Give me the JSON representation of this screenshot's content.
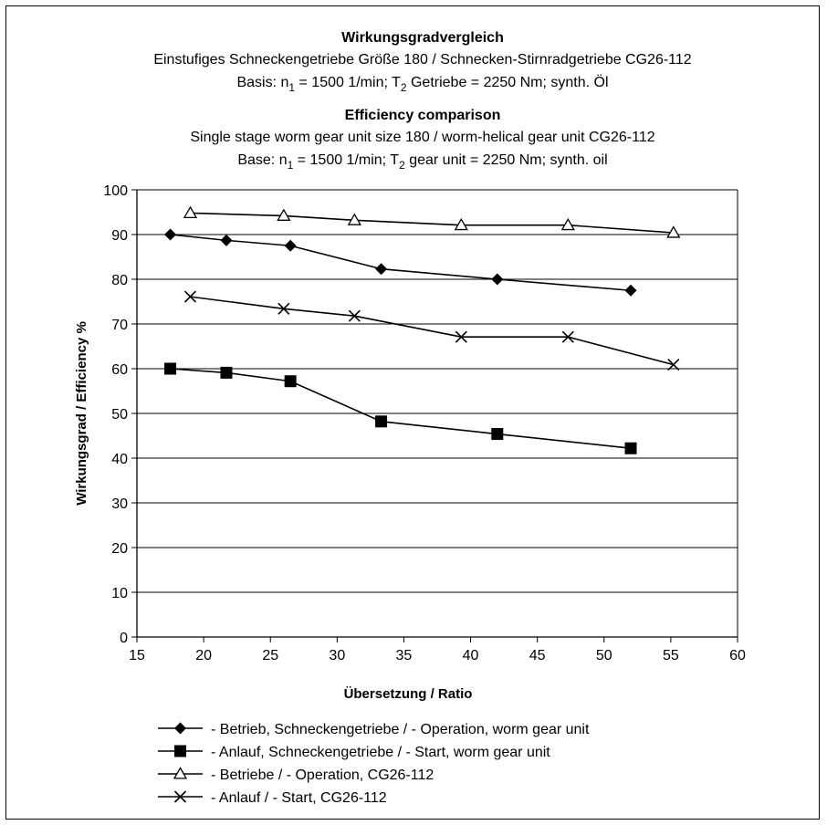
{
  "chart_data": {
    "type": "line",
    "title_de": "Wirkungsgradvergleich",
    "subtitle_de": "Einstufiges Schneckengetriebe Größe 180  /  Schnecken-Stirnradgetriebe CG26-112",
    "basis_de": {
      "p1": "Basis: n",
      "s1": "1",
      "p2": " = 1500 1/min; T",
      "s2": "2",
      "p3": " Getriebe = 2250 Nm; synth. Öl"
    },
    "title_en": "Efficiency comparison",
    "subtitle_en": "Single stage worm gear unit size 180  /  worm-helical gear unit CG26-112",
    "basis_en": {
      "p1": "Base: n",
      "s1": "1",
      "p2": " = 1500 1/min; T",
      "s2": "2",
      "p3": " gear unit = 2250 Nm; synth. oil"
    },
    "xlabel": "Übersetzung / Ratio",
    "ylabel": "Wirkungsgrad / Efficiency %",
    "xlim": [
      15,
      60
    ],
    "ylim": [
      0,
      100
    ],
    "xticks": [
      "15",
      "20",
      "25",
      "30",
      "35",
      "40",
      "45",
      "50",
      "55",
      "60"
    ],
    "yticks": [
      "0",
      "10",
      "20",
      "30",
      "40",
      "50",
      "60",
      "70",
      "80",
      "90",
      "100"
    ],
    "grid": "horizontal",
    "legend_position": "bottom",
    "series": [
      {
        "name": "- Betrieb, Schneckengetriebe /  - Operation, worm gear unit",
        "marker": "diamond",
        "x": [
          17.5,
          21.7,
          26.5,
          33.3,
          42.0,
          52.0
        ],
        "y": [
          90,
          88.7,
          87.5,
          82.3,
          80,
          77.5
        ]
      },
      {
        "name": "- Anlauf, Schneckengetriebe /  - Start, worm gear unit",
        "marker": "square",
        "x": [
          17.5,
          21.7,
          26.5,
          33.3,
          42.0,
          52.0
        ],
        "y": [
          60,
          59.1,
          57.2,
          48.2,
          45.4,
          42.2
        ]
      },
      {
        "name": "- Betriebe /  - Operation, CG26-112",
        "marker": "triangle-open",
        "x": [
          19.0,
          26.0,
          31.3,
          39.3,
          47.3,
          55.2
        ],
        "y": [
          94.8,
          94.2,
          93.2,
          92.1,
          92.1,
          90.4
        ]
      },
      {
        "name": "- Anlauf /  - Start, CG26-112",
        "marker": "x",
        "x": [
          19.0,
          26.0,
          31.3,
          39.3,
          47.3,
          55.2
        ],
        "y": [
          76.1,
          73.4,
          71.8,
          67.1,
          67.1,
          60.9
        ]
      }
    ],
    "colors": {
      "line": "#000000",
      "grid": "#000000",
      "background": "#ffffff"
    }
  }
}
